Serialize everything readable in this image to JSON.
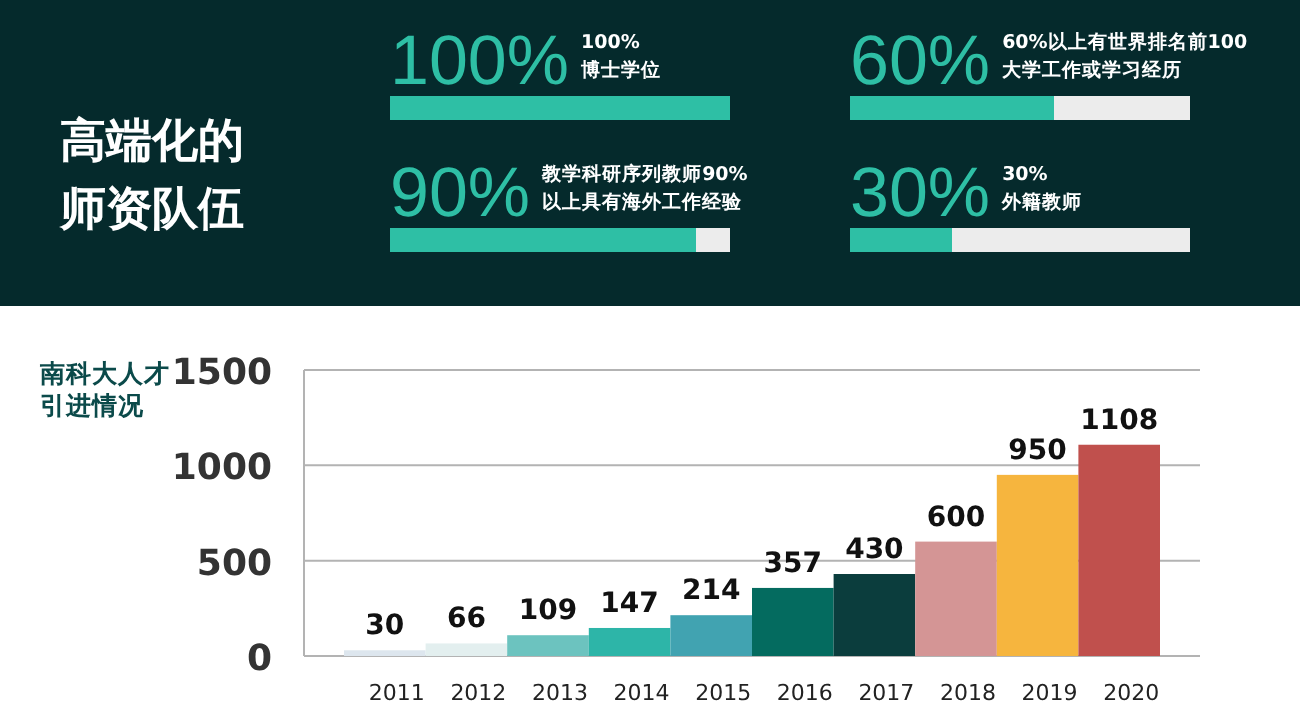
{
  "chart_data": [
    {
      "type": "other",
      "title": "高端化的师资队伍",
      "categories": [
        "100%\n博士学位",
        "60%以上有世界排名前100\n大学工作或学习经历",
        "教学科研序列教师90%\n以上具有海外工作经验",
        "30%\n外籍教师"
      ],
      "values": [
        100,
        60,
        90,
        30
      ],
      "value_labels": [
        "100%",
        "60%",
        "90%",
        "30%"
      ],
      "color": "#2ebfa5"
    },
    {
      "type": "bar",
      "title": "南科大人才引进情况",
      "categories": [
        "2011",
        "2012",
        "2013",
        "2014",
        "2015",
        "2016",
        "2017",
        "2018",
        "2019",
        "2020"
      ],
      "values": [
        30,
        66,
        109,
        147,
        214,
        357,
        430,
        600,
        950,
        1108
      ],
      "colors": [
        "#dde6ee",
        "#e3efef",
        "#6cc3bf",
        "#2db5a8",
        "#41a3b1",
        "#046b5f",
        "#0b3d3d",
        "#d49595",
        "#f6b53e",
        "#c0504d"
      ],
      "ylim": [
        0,
        1500
      ],
      "yticks": [
        0,
        500,
        1000,
        1500
      ],
      "grid": "y",
      "data_labels": true
    }
  ]
}
